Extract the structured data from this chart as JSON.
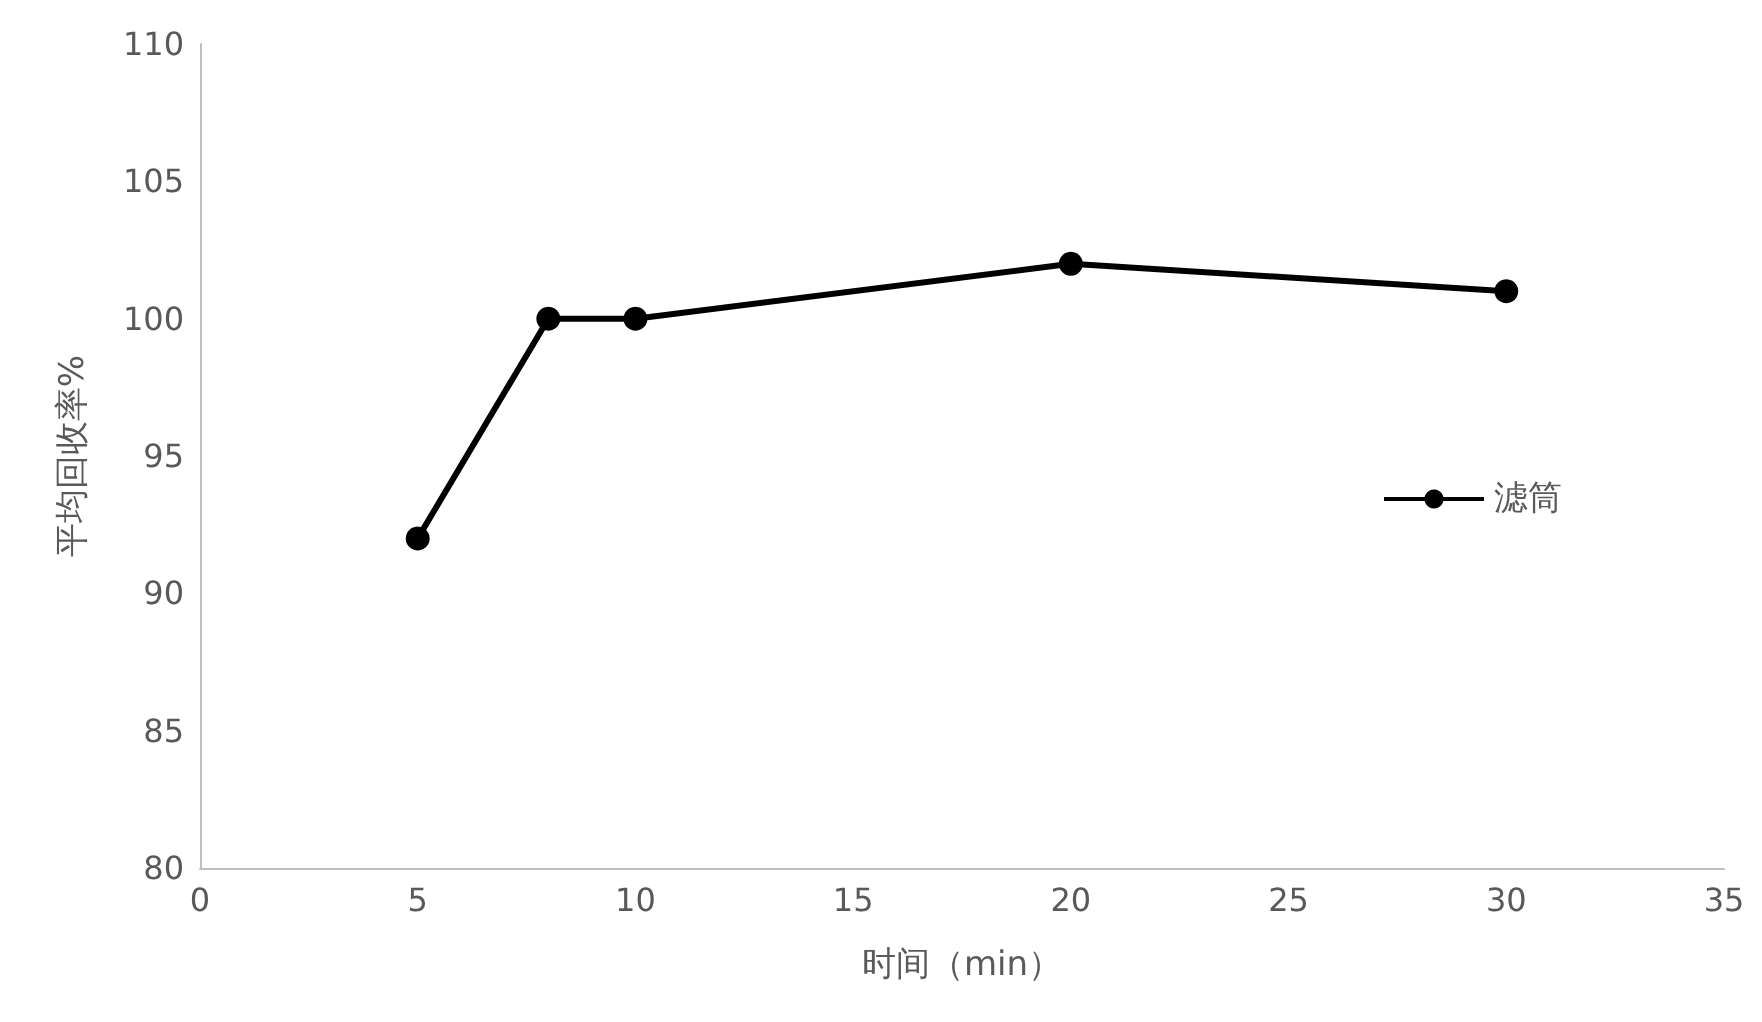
{
  "chart_data": {
    "type": "line",
    "xlabel": "时间（min）",
    "ylabel": "平均回收率%",
    "x": [
      5,
      8,
      10,
      20,
      30
    ],
    "series": [
      {
        "name": "滤筒",
        "color": "#000000",
        "values": [
          92,
          100,
          100,
          102,
          101
        ]
      }
    ],
    "xlim": [
      0,
      35
    ],
    "xticks": [
      0,
      5,
      10,
      15,
      20,
      25,
      30,
      35
    ],
    "ylim": [
      80,
      110
    ],
    "yticks": [
      80,
      85,
      90,
      95,
      100,
      105,
      110
    ],
    "grid": false,
    "legend": "right",
    "marker": "circle",
    "line_style": "solid"
  }
}
